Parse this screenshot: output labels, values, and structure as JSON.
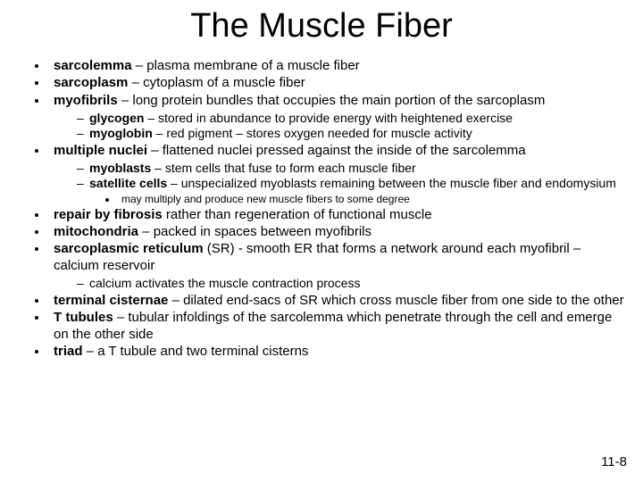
{
  "title": "The Muscle Fiber",
  "page_number": "11-8",
  "colors": {
    "background": "#ffffff",
    "text": "#000000"
  },
  "fonts": {
    "title_size": 38,
    "l1_size": 15,
    "l2_size": 14,
    "l3_size": 12,
    "family": "Arial"
  },
  "bullets": {
    "i0": {
      "term": "sarcolemma",
      "def": " – plasma membrane of a muscle fiber"
    },
    "i1": {
      "term": "sarcoplasm",
      "def": " – cytoplasm of a muscle fiber"
    },
    "i2": {
      "term": "myofibrils",
      "def": " – long protein bundles that occupies the main portion of the sarcoplasm",
      "sub": {
        "s0": {
          "term": "glycogen",
          "def": " – stored in abundance to provide energy with heightened exercise"
        },
        "s1": {
          "term": "myoglobin",
          "def": " – red pigment – stores oxygen needed for muscle activity"
        }
      }
    },
    "i3": {
      "term": "multiple nuclei",
      "def": " – flattened nuclei pressed against the inside of the sarcolemma",
      "sub": {
        "s0": {
          "term": "myoblasts",
          "def": " – stem cells that fuse to form each muscle fiber"
        },
        "s1": {
          "term": "satellite cells",
          "def": " – unspecialized myoblasts remaining between the muscle fiber and endomysium",
          "sub": {
            "t0": "may multiply and produce new muscle fibers to some degree"
          }
        }
      }
    },
    "i4": {
      "term": "repair by fibrosis",
      "def": " rather than regeneration of functional muscle"
    },
    "i5": {
      "term": "mitochondria",
      "def": " – packed  in spaces between myofibrils"
    },
    "i6": {
      "term": "sarcoplasmic reticulum",
      "def": " (SR) -  smooth ER that forms a network around each myofibril – calcium reservoir",
      "sub": {
        "s0": {
          "def": "calcium activates the muscle contraction process"
        }
      }
    },
    "i7": {
      "term": "terminal cisternae",
      "def": " – dilated end-sacs of SR which cross muscle fiber from one side to the other"
    },
    "i8": {
      "term": "T tubules",
      "def": " – tubular infoldings of the sarcolemma which penetrate through the cell and emerge on the other side"
    },
    "i9": {
      "term": "triad",
      "def": " – a T tubule and two terminal cisterns"
    }
  }
}
